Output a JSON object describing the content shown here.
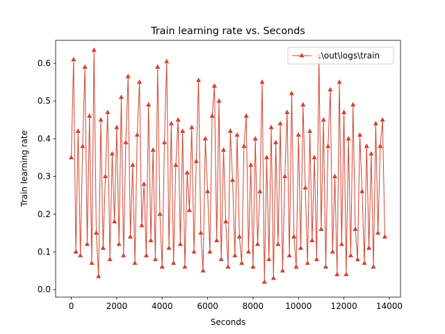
{
  "chart_data": {
    "type": "line",
    "title": "Train learning rate  vs. Seconds",
    "x_label": "Seconds",
    "y_label": "Train learning rate",
    "legend": "upper right",
    "marker": "triangle",
    "x": [
      0,
      100,
      200,
      300,
      400,
      500,
      600,
      700,
      800,
      900,
      1000,
      1100,
      1200,
      1300,
      1400,
      1500,
      1600,
      1700,
      1800,
      1900,
      2000,
      2100,
      2200,
      2300,
      2400,
      2500,
      2600,
      2700,
      2800,
      2900,
      3000,
      3100,
      3200,
      3300,
      3400,
      3500,
      3600,
      3700,
      3800,
      3900,
      4000,
      4100,
      4200,
      4300,
      4400,
      4500,
      4600,
      4700,
      4800,
      4900,
      5000,
      5100,
      5200,
      5300,
      5400,
      5500,
      5600,
      5700,
      5800,
      5900,
      6000,
      6100,
      6200,
      6300,
      6400,
      6500,
      6600,
      6700,
      6800,
      6900,
      7000,
      7100,
      7200,
      7300,
      7400,
      7500,
      7600,
      7700,
      7800,
      7900,
      8000,
      8100,
      8200,
      8300,
      8400,
      8500,
      8600,
      8700,
      8800,
      8900,
      9000,
      9100,
      9200,
      9300,
      9400,
      9500,
      9600,
      9700,
      9800,
      9900,
      10000,
      10100,
      10200,
      10300,
      10400,
      10500,
      10600,
      10700,
      10800,
      10900,
      11000,
      11100,
      11200,
      11300,
      11400,
      11500,
      11600,
      11700,
      11800,
      11900,
      12000,
      12100,
      12200,
      12300,
      12400,
      12500,
      12600,
      12700,
      12800,
      12900,
      13000,
      13100,
      13200,
      13300,
      13400,
      13500,
      13600,
      13700,
      13800
    ],
    "series": [
      {
        "name": ".\\out\\logs\\train",
        "color": "#d1432f",
        "values": [
          0.35,
          0.61,
          0.1,
          0.42,
          0.09,
          0.38,
          0.59,
          0.12,
          0.46,
          0.07,
          0.635,
          0.15,
          0.035,
          0.45,
          0.11,
          0.3,
          0.47,
          0.08,
          0.36,
          0.18,
          0.43,
          0.12,
          0.51,
          0.09,
          0.39,
          0.565,
          0.14,
          0.33,
          0.07,
          0.41,
          0.55,
          0.17,
          0.28,
          0.09,
          0.49,
          0.13,
          0.37,
          0.08,
          0.59,
          0.2,
          0.06,
          0.39,
          0.605,
          0.11,
          0.44,
          0.07,
          0.33,
          0.45,
          0.12,
          0.42,
          0.06,
          0.31,
          0.21,
          0.43,
          0.1,
          0.34,
          0.555,
          0.15,
          0.05,
          0.4,
          0.26,
          0.1,
          0.46,
          0.54,
          0.13,
          0.5,
          0.08,
          0.37,
          0.18,
          0.06,
          0.42,
          0.29,
          0.09,
          0.41,
          0.14,
          0.07,
          0.38,
          0.46,
          0.1,
          0.33,
          0.06,
          0.4,
          0.12,
          0.26,
          0.55,
          0.02,
          0.35,
          0.08,
          0.43,
          0.03,
          0.39,
          0.12,
          0.44,
          0.05,
          0.3,
          0.47,
          0.09,
          0.52,
          0.14,
          0.06,
          0.41,
          0.11,
          0.49,
          0.27,
          0.07,
          0.42,
          0.13,
          0.35,
          0.08,
          0.62,
          0.16,
          0.45,
          0.06,
          0.38,
          0.53,
          0.1,
          0.3,
          0.04,
          0.55,
          0.12,
          0.47,
          0.04,
          0.4,
          0.09,
          0.49,
          0.16,
          0.08,
          0.41,
          0.26,
          0.07,
          0.38,
          0.11,
          0.36,
          0.06,
          0.44,
          0.15,
          0.38,
          0.45,
          0.14
        ]
      }
    ],
    "xlim": [
      -690,
      14490
    ],
    "xticks": [
      0,
      2000,
      4000,
      6000,
      8000,
      10000,
      12000,
      14000
    ],
    "ylim": [
      -0.02,
      0.661
    ],
    "yticks": [
      {
        "value": 0,
        "label": "0.0"
      },
      0.1,
      0.2,
      0.3,
      0.4,
      0.5,
      0.6
    ]
  }
}
